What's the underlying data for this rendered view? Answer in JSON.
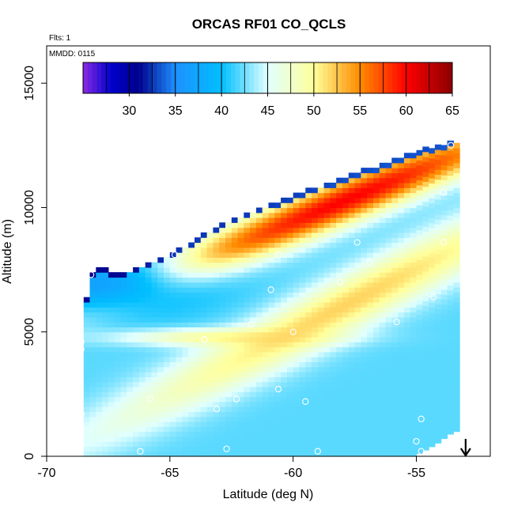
{
  "chart_data": {
    "type": "heatmap",
    "title": "ORCAS RF01 CO_QCLS",
    "subtitle_flights": "Flts: 1",
    "subtitle_date": "MMDD: 0115",
    "xlabel": "Latitude (deg N)",
    "ylabel": "Altitude (m)",
    "xlim": [
      -70,
      -52
    ],
    "ylim": [
      0,
      16500
    ],
    "x_ticks": [
      -70,
      -65,
      -60,
      -55
    ],
    "x_tick_labels": [
      "-70",
      "-65",
      "-60",
      "-55"
    ],
    "y_ticks": [
      0,
      5000,
      10000,
      15000
    ],
    "y_tick_labels": [
      "0",
      "5000",
      "10000",
      "15000"
    ],
    "colorbar": {
      "range": [
        25,
        65
      ],
      "ticks": [
        30,
        35,
        40,
        45,
        50,
        55,
        60,
        65
      ],
      "tick_labels": [
        "30",
        "35",
        "40",
        "45",
        "50",
        "55",
        "60",
        "65"
      ],
      "stops": [
        {
          "value": 25,
          "color": "#8a2be2"
        },
        {
          "value": 28,
          "color": "#0000cd"
        },
        {
          "value": 31,
          "color": "#00008b"
        },
        {
          "value": 35,
          "color": "#1e90ff"
        },
        {
          "value": 40,
          "color": "#00bfff"
        },
        {
          "value": 45,
          "color": "#e0ffff"
        },
        {
          "value": 50,
          "color": "#ffff99"
        },
        {
          "value": 55,
          "color": "#ff8c00"
        },
        {
          "value": 60,
          "color": "#ff0000"
        },
        {
          "value": 65,
          "color": "#8b0000"
        }
      ]
    },
    "cell_size": {
      "lat": 0.25,
      "alt": 200
    },
    "profiles": [
      {
        "lat": -68.7,
        "bottom": 0,
        "top": 5500
      },
      {
        "lat": -68.2,
        "bottom": 0,
        "top": 7500
      },
      {
        "lat": -67,
        "bottom": 0,
        "top": 7300
      },
      {
        "lat": -65,
        "bottom": 0,
        "top": 8100
      },
      {
        "lat": -63,
        "bottom": 0,
        "top": 9300
      },
      {
        "lat": -61,
        "bottom": 0,
        "top": 10100
      },
      {
        "lat": -59,
        "bottom": 0,
        "top": 10800
      },
      {
        "lat": -57,
        "bottom": 0,
        "top": 11500
      },
      {
        "lat": -55.2,
        "bottom": 0,
        "top": 12200
      },
      {
        "lat": -54.3,
        "bottom": 500,
        "top": 12400
      },
      {
        "lat": -53.6,
        "bottom": 1000,
        "top": 12600
      }
    ],
    "features": [
      {
        "name": "background-low",
        "lat": -62,
        "alt": 1500,
        "value": 42,
        "slat": 20,
        "salt": 4000,
        "weight": 0.0
      },
      {
        "name": "upper-plume",
        "lat": -58,
        "alt": 10200,
        "slope": 400,
        "value": 60,
        "slat": 6,
        "salt": 700,
        "weight": 1.0
      },
      {
        "name": "mid-plume",
        "lat": -58,
        "alt": 6000,
        "slope": 500,
        "value": 53,
        "slat": 7,
        "salt": 900,
        "weight": 0.9
      },
      {
        "name": "tongue-4700",
        "lat": -63,
        "alt": 4700,
        "value": 52,
        "slat": 3,
        "salt": 250,
        "weight": 0.8
      },
      {
        "name": "low-blue-west",
        "lat": -68,
        "alt": 6800,
        "value": 35,
        "slat": 3,
        "salt": 900,
        "weight": 0.8
      },
      {
        "name": "cap-blue",
        "alt": 200,
        "value": 30,
        "weight": 0.85
      }
    ],
    "observation_markers": [
      {
        "lat": -68.2,
        "alt": 7300
      },
      {
        "lat": -64.8,
        "alt": 8100
      },
      {
        "lat": -60.6,
        "alt": 8100
      },
      {
        "lat": -57.4,
        "alt": 8600
      },
      {
        "lat": -56.9,
        "alt": 7800
      },
      {
        "lat": -58.1,
        "alt": 7000
      },
      {
        "lat": -54.3,
        "alt": 6400
      },
      {
        "lat": -60.9,
        "alt": 6700
      },
      {
        "lat": -61.7,
        "alt": 5300
      },
      {
        "lat": -60.0,
        "alt": 5000
      },
      {
        "lat": -55.8,
        "alt": 5400
      },
      {
        "lat": -63.6,
        "alt": 4700
      },
      {
        "lat": -68.6,
        "alt": 4600
      },
      {
        "lat": -68.6,
        "alt": 4300
      },
      {
        "lat": -60.6,
        "alt": 2700
      },
      {
        "lat": -59.5,
        "alt": 2200
      },
      {
        "lat": -65.8,
        "alt": 2300
      },
      {
        "lat": -62.3,
        "alt": 2300
      },
      {
        "lat": -63.1,
        "alt": 1900
      },
      {
        "lat": -68.6,
        "alt": 1700
      },
      {
        "lat": -68.7,
        "alt": 1900
      },
      {
        "lat": -54.8,
        "alt": 1500
      },
      {
        "lat": -55.0,
        "alt": 600
      },
      {
        "lat": -66.2,
        "alt": 200
      },
      {
        "lat": -62.7,
        "alt": 300
      },
      {
        "lat": -59.0,
        "alt": 200
      },
      {
        "lat": -54.8,
        "alt": 200
      },
      {
        "lat": -68.7,
        "alt": 100
      },
      {
        "lat": -53.6,
        "alt": 12500
      },
      {
        "lat": -53.9,
        "alt": 10600
      },
      {
        "lat": -53.9,
        "alt": 8600
      }
    ],
    "arrow": {
      "lat": -53,
      "alt_from": 700,
      "alt_to": 0
    }
  },
  "colors": {
    "frame": "#000000",
    "marker": "#ffffff"
  }
}
